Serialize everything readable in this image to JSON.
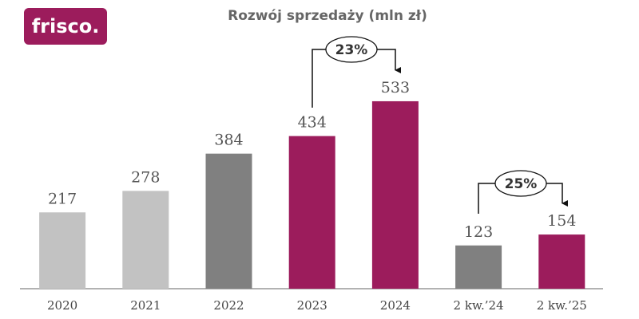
{
  "logo": "frisco.",
  "chart_data": {
    "type": "bar",
    "title": "Rozwój sprzedaży (mln zł)",
    "categories": [
      "2020",
      "2021",
      "2022",
      "2023",
      "2024",
      "2 kw.’24",
      "2 kw.’25"
    ],
    "values": [
      217,
      278,
      384,
      434,
      533,
      123,
      154
    ],
    "colors": [
      "#c2c2c2",
      "#c2c2c2",
      "#808080",
      "#9c1c5c",
      "#9c1c5c",
      "#808080",
      "#9c1c5c"
    ],
    "annotations": [
      {
        "text": "23%"
      },
      {
        "text": "25%"
      }
    ]
  }
}
